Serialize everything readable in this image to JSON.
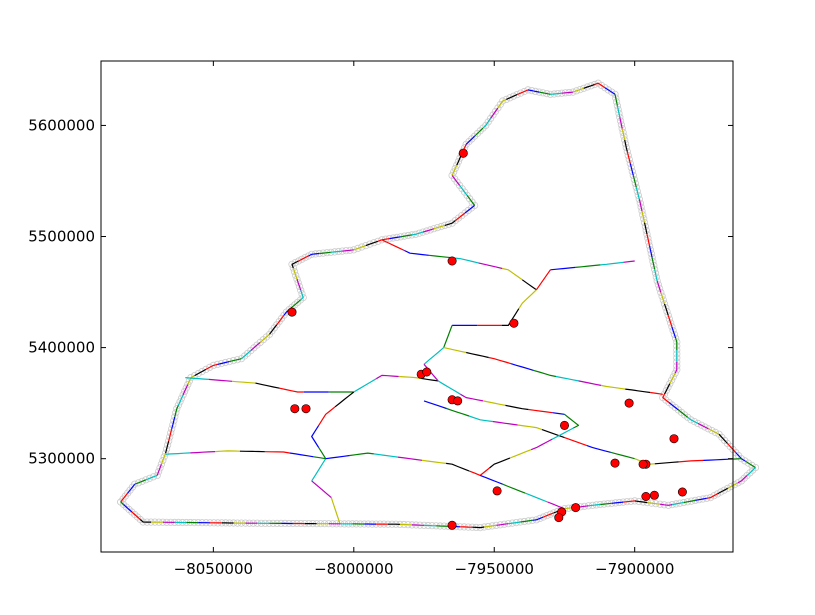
{
  "chart_data": {
    "type": "line",
    "title": "",
    "xlabel": "",
    "ylabel": "",
    "xlim": [
      -8090000,
      -7865000
    ],
    "ylim": [
      5216000,
      5658000
    ],
    "grid": false,
    "legend": "none",
    "x_ticks": [
      {
        "value": -8050000,
        "label": "−8050000"
      },
      {
        "value": -8000000,
        "label": "−8000000"
      },
      {
        "value": -7950000,
        "label": "−7950000"
      },
      {
        "value": -7900000,
        "label": "−7900000"
      }
    ],
    "y_ticks": [
      {
        "value": 5300000,
        "label": "5300000"
      },
      {
        "value": 5400000,
        "label": "5400000"
      },
      {
        "value": 5500000,
        "label": "5500000"
      },
      {
        "value": 5600000,
        "label": "5600000"
      }
    ],
    "segment_colors": [
      "#ff0000",
      "#0000ff",
      "#008000",
      "#00bfbf",
      "#bf00bf",
      "#bfbf00",
      "#000000"
    ],
    "vertex_marker_color": "#cccccc",
    "point_color": "#ff0000",
    "outline": [
      [
        -8083000,
        5261000
      ],
      [
        -8078000,
        5277000
      ],
      [
        -8070000,
        5285000
      ],
      [
        -8067000,
        5305000
      ],
      [
        -8063000,
        5345000
      ],
      [
        -8058000,
        5373000
      ],
      [
        -8050000,
        5384000
      ],
      [
        -8040000,
        5390000
      ],
      [
        -8030000,
        5412000
      ],
      [
        -8024000,
        5432000
      ],
      [
        -8018000,
        5445000
      ],
      [
        -8022000,
        5475000
      ],
      [
        -8015000,
        5484000
      ],
      [
        -8000000,
        5488000
      ],
      [
        -7990000,
        5497000
      ],
      [
        -7978000,
        5502000
      ],
      [
        -7965000,
        5512000
      ],
      [
        -7957000,
        5528000
      ],
      [
        -7965000,
        5555000
      ],
      [
        -7960000,
        5583000
      ],
      [
        -7953000,
        5600000
      ],
      [
        -7947000,
        5622000
      ],
      [
        -7938000,
        5632000
      ],
      [
        -7930000,
        5628000
      ],
      [
        -7922000,
        5630000
      ],
      [
        -7913000,
        5638000
      ],
      [
        -7907000,
        5628000
      ],
      [
        -7903000,
        5580000
      ],
      [
        -7898000,
        5530000
      ],
      [
        -7892000,
        5460000
      ],
      [
        -7885000,
        5405000
      ],
      [
        -7885000,
        5380000
      ],
      [
        -7890000,
        5355000
      ],
      [
        -7880000,
        5335000
      ],
      [
        -7870000,
        5322000
      ],
      [
        -7862000,
        5300000
      ],
      [
        -7857000,
        5292000
      ],
      [
        -7862000,
        5280000
      ],
      [
        -7873000,
        5265000
      ],
      [
        -7888000,
        5258000
      ],
      [
        -7900000,
        5262000
      ],
      [
        -7915000,
        5258000
      ],
      [
        -7925000,
        5255000
      ],
      [
        -7935000,
        5245000
      ],
      [
        -7955000,
        5238000
      ],
      [
        -7985000,
        5241000
      ],
      [
        -8040000,
        5242000
      ],
      [
        -8075000,
        5243000
      ],
      [
        -8083000,
        5261000
      ]
    ],
    "internal_lines": [
      [
        [
          -8067000,
          5304000
        ],
        [
          -8045000,
          5307000
        ],
        [
          -8025000,
          5306000
        ],
        [
          -8010000,
          5300000
        ]
      ],
      [
        [
          -8060000,
          5373000
        ],
        [
          -8035000,
          5368000
        ],
        [
          -8020000,
          5360000
        ],
        [
          -8000000,
          5360000
        ]
      ],
      [
        [
          -8010000,
          5300000
        ],
        [
          -8015000,
          5280000
        ],
        [
          -8008000,
          5265000
        ],
        [
          -8005000,
          5242000
        ]
      ],
      [
        [
          -8000000,
          5360000
        ],
        [
          -8010000,
          5340000
        ],
        [
          -8015000,
          5320000
        ],
        [
          -8010000,
          5300000
        ]
      ],
      [
        [
          -8000000,
          5360000
        ],
        [
          -7990000,
          5375000
        ],
        [
          -7978000,
          5373000
        ],
        [
          -7970000,
          5370000
        ]
      ],
      [
        [
          -7990000,
          5497000
        ],
        [
          -7980000,
          5485000
        ],
        [
          -7962000,
          5480000
        ],
        [
          -7945000,
          5470000
        ],
        [
          -7935000,
          5452000
        ]
      ],
      [
        [
          -7935000,
          5452000
        ],
        [
          -7930000,
          5470000
        ],
        [
          -7910000,
          5475000
        ],
        [
          -7900000,
          5478000
        ]
      ],
      [
        [
          -7935000,
          5452000
        ],
        [
          -7940000,
          5440000
        ],
        [
          -7945000,
          5420000
        ],
        [
          -7965000,
          5420000
        ]
      ],
      [
        [
          -7965000,
          5420000
        ],
        [
          -7968000,
          5400000
        ],
        [
          -7975000,
          5385000
        ],
        [
          -7970000,
          5370000
        ]
      ],
      [
        [
          -7968000,
          5400000
        ],
        [
          -7950000,
          5390000
        ],
        [
          -7930000,
          5375000
        ],
        [
          -7910000,
          5365000
        ],
        [
          -7890000,
          5358000
        ]
      ],
      [
        [
          -7975000,
          5352000
        ],
        [
          -7955000,
          5335000
        ],
        [
          -7935000,
          5328000
        ],
        [
          -7915000,
          5310000
        ],
        [
          -7900000,
          5300000
        ]
      ],
      [
        [
          -7970000,
          5370000
        ],
        [
          -7960000,
          5355000
        ],
        [
          -7940000,
          5345000
        ],
        [
          -7925000,
          5340000
        ]
      ],
      [
        [
          -7925000,
          5340000
        ],
        [
          -7920000,
          5330000
        ],
        [
          -7935000,
          5310000
        ],
        [
          -7950000,
          5295000
        ],
        [
          -7955000,
          5285000
        ]
      ],
      [
        [
          -8010000,
          5300000
        ],
        [
          -7995000,
          5305000
        ],
        [
          -7980000,
          5300000
        ],
        [
          -7965000,
          5295000
        ],
        [
          -7955000,
          5285000
        ]
      ],
      [
        [
          -7955000,
          5285000
        ],
        [
          -7945000,
          5275000
        ],
        [
          -7935000,
          5265000
        ],
        [
          -7925000,
          5255000
        ]
      ],
      [
        [
          -7900000,
          5300000
        ],
        [
          -7895000,
          5295000
        ],
        [
          -7880000,
          5298000
        ],
        [
          -7862000,
          5300000
        ]
      ]
    ],
    "points": [
      [
        -7961000,
        5575000
      ],
      [
        -7965000,
        5478000
      ],
      [
        -8022000,
        5432000
      ],
      [
        -7943000,
        5422000
      ],
      [
        -7976000,
        5376000
      ],
      [
        -7974000,
        5378000
      ],
      [
        -7965000,
        5353000
      ],
      [
        -7963000,
        5352000
      ],
      [
        -8021000,
        5345000
      ],
      [
        -8017000,
        5345000
      ],
      [
        -7925000,
        5330000
      ],
      [
        -7902000,
        5350000
      ],
      [
        -7886000,
        5318000
      ],
      [
        -7907000,
        5296000
      ],
      [
        -7896000,
        5295000
      ],
      [
        -7897000,
        5295000
      ],
      [
        -7883000,
        5270000
      ],
      [
        -7896000,
        5266000
      ],
      [
        -7893000,
        5267000
      ],
      [
        -7949000,
        5271000
      ],
      [
        -7921000,
        5256000
      ],
      [
        -7926000,
        5252000
      ],
      [
        -7927000,
        5247000
      ],
      [
        -7965000,
        5240000
      ]
    ]
  }
}
